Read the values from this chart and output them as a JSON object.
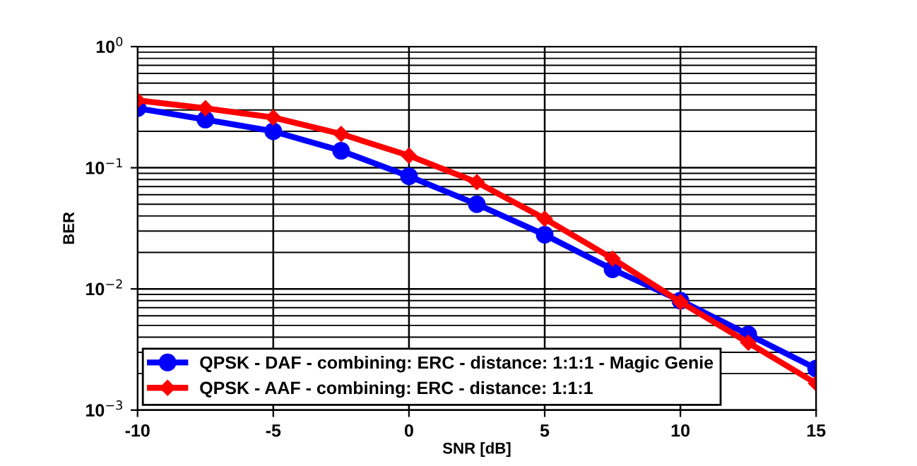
{
  "chart_data": {
    "type": "line",
    "xlabel": "SNR [dB]",
    "ylabel": "BER",
    "log": "y",
    "grid": true,
    "legend": "bottom left",
    "line_style": "solid",
    "x": [
      -10,
      -7.5,
      -5,
      -2.5,
      0,
      2.5,
      5,
      7.5,
      10,
      12.5,
      15
    ],
    "xlim": [
      -10,
      15
    ],
    "xticks": [
      -10,
      -5,
      0,
      5,
      10,
      15
    ],
    "ylim": [
      0.001,
      1
    ],
    "yticks": [
      {
        "value": 1,
        "label": "10$^{0}$"
      },
      {
        "value": 0.1,
        "label": "10$^{−1}$"
      },
      {
        "value": 0.01,
        "label": "10$^{−2}$"
      },
      {
        "value": 0.001,
        "label": "10$^{−3}$"
      }
    ],
    "series": [
      {
        "name": "QPSK - DAF - combining: ERC - distance: 1:1:1 - Magic Genie",
        "color": "#0000ff",
        "marker": "circle",
        "values": [
          0.31,
          0.25,
          0.2,
          0.138,
          0.085,
          0.05,
          0.028,
          0.0145,
          0.008,
          0.0042,
          0.0022
        ]
      },
      {
        "name": "QPSK - AAF - combining: ERC - distance: 1:1:1",
        "color": "#ff0000",
        "marker": "diamond",
        "values": [
          0.36,
          0.31,
          0.26,
          0.19,
          0.126,
          0.076,
          0.038,
          0.0178,
          0.0078,
          0.0036,
          0.00166
        ]
      }
    ]
  }
}
